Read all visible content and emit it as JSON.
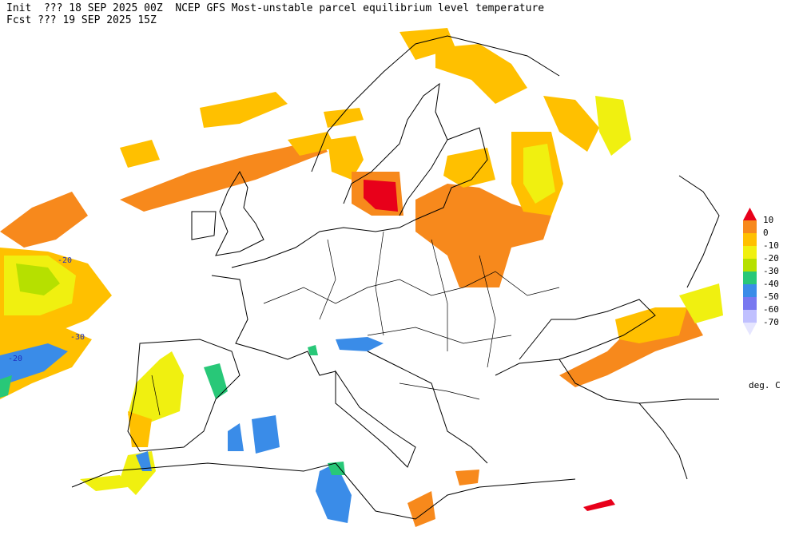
{
  "header": {
    "line1": "Init  ??? 18 SEP 2025 00Z  NCEP GFS Most-unstable parcel equilibrium level temperature",
    "line2": "Fcst ??? 19 SEP 2025 15Z"
  },
  "map": {
    "contour_labels": [
      "-20",
      "-30",
      "-20"
    ]
  },
  "legend": {
    "levels": [
      10,
      0,
      -10,
      -20,
      -30,
      -40,
      -50,
      -60,
      -70
    ],
    "colors": [
      "#e8001a",
      "#f7891c",
      "#ffc000",
      "#f0f010",
      "#b6e000",
      "#28c878",
      "#3a8ce8",
      "#7878f0",
      "#c0c0ff",
      "#e6e6ff"
    ],
    "unit": "deg. C"
  }
}
